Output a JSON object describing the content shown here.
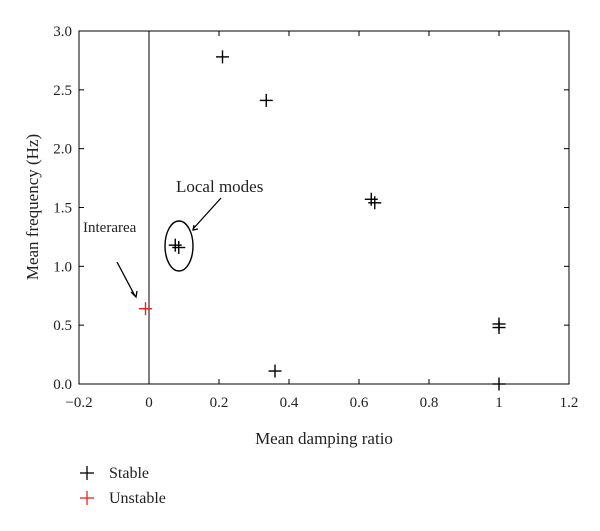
{
  "chart_data": {
    "type": "scatter",
    "xlabel": "Mean damping ratio",
    "ylabel": "Mean frequency (Hz)",
    "xlim": [
      -0.2,
      1.2
    ],
    "ylim": [
      0.0,
      3.0
    ],
    "xticks": [
      -0.2,
      0,
      0.2,
      0.4,
      0.6,
      0.8,
      1,
      1.2
    ],
    "xtick_labels": [
      "−0.2",
      "0",
      "0.2",
      "0.4",
      "0.6",
      "0.8",
      "1",
      "1.2"
    ],
    "yticks": [
      0.0,
      0.5,
      1.0,
      1.5,
      2.0,
      2.5,
      3.0
    ],
    "ytick_labels": [
      "0.0",
      "0.5",
      "1.0",
      "1.5",
      "2.0",
      "2.5",
      "3.0"
    ],
    "grid": false,
    "reference_line_x": 0,
    "legend_placement": "bottom-left, below the axes",
    "series": [
      {
        "name": "Stable",
        "color": "#000000",
        "marker": "plus",
        "points": [
          {
            "x": 0.21,
            "y": 2.78
          },
          {
            "x": 0.335,
            "y": 2.41
          },
          {
            "x": 0.635,
            "y": 1.57
          },
          {
            "x": 0.645,
            "y": 1.54
          },
          {
            "x": 0.075,
            "y": 1.18
          },
          {
            "x": 0.085,
            "y": 1.16
          },
          {
            "x": 1.0,
            "y": 0.51
          },
          {
            "x": 1.0,
            "y": 0.48
          },
          {
            "x": 1.0,
            "y": 0.0
          },
          {
            "x": 0.36,
            "y": 0.11
          }
        ]
      },
      {
        "name": "Unstable",
        "color": "#e8221b",
        "marker": "plus",
        "points": [
          {
            "x": -0.01,
            "y": 0.64
          }
        ]
      }
    ],
    "annotations": [
      {
        "text": "Local modes"
      },
      {
        "text": "Interarea"
      }
    ]
  }
}
